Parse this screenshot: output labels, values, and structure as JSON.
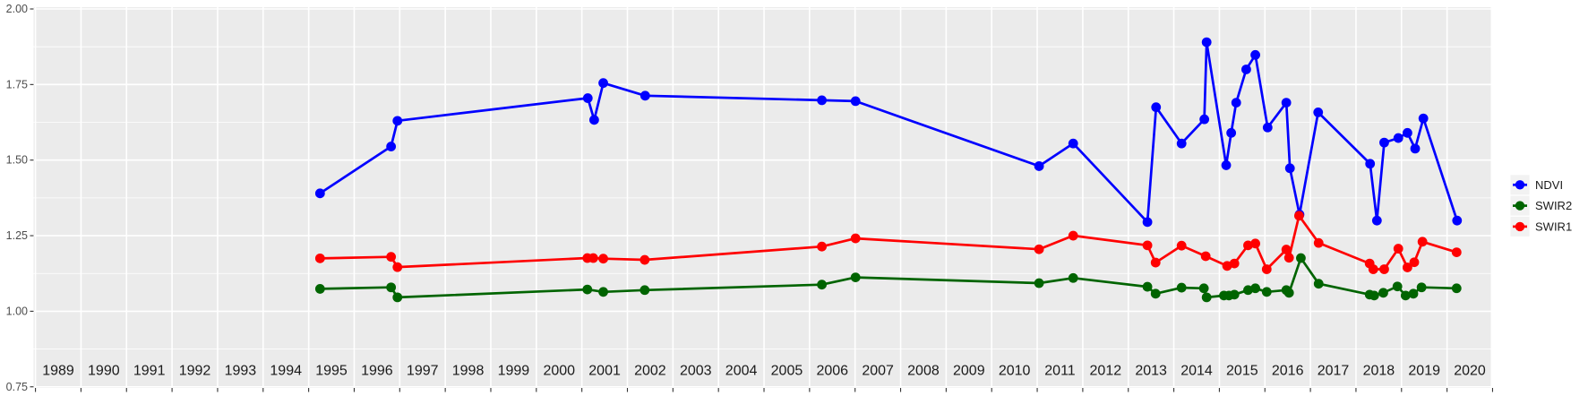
{
  "chart_data": {
    "type": "line",
    "title": "",
    "xlabel": "",
    "ylabel": "",
    "x_axis": {
      "min": 1988.95,
      "max": 2020.96,
      "gridline_years": [
        1989,
        1990,
        1991,
        1992,
        1993,
        1994,
        1995,
        1996,
        1997,
        1998,
        1999,
        2000,
        2001,
        2002,
        2003,
        2004,
        2005,
        2006,
        2007,
        2008,
        2009,
        2010,
        2011,
        2012,
        2013,
        2014,
        2015,
        2016,
        2017,
        2018,
        2019,
        2020,
        2021
      ],
      "year_labels": [
        "1989",
        "1990",
        "1991",
        "1992",
        "1993",
        "1994",
        "1995",
        "1996",
        "1997",
        "1998",
        "1999",
        "2000",
        "2001",
        "2002",
        "2003",
        "2004",
        "2005",
        "2006",
        "2007",
        "2008",
        "2009",
        "2010",
        "2011",
        "2012",
        "2013",
        "2014",
        "2015",
        "2016",
        "2017",
        "2018",
        "2019",
        "2020"
      ]
    },
    "y_axis": {
      "min": 0.746,
      "max": 2.006,
      "major_ticks": [
        0.75,
        1.0,
        1.25,
        1.5,
        1.75,
        2.0
      ],
      "tick_labels": [
        "0.75",
        "1.00",
        "1.25",
        "1.50",
        "1.75",
        "2.00"
      ],
      "minor_ticks": [
        0.875,
        1.125,
        1.375,
        1.625,
        1.875
      ]
    },
    "legend": {
      "position": "right",
      "entries": [
        "NDVI",
        "SWIR2",
        "SWIR1"
      ]
    },
    "grid": {
      "panel_bg": "#EBEBEB",
      "grid_color": "#FFFFFF",
      "axis_text_color": "#4D4D4D",
      "year_label_color": "#1A1A1A",
      "tick_mark_color": "#333333",
      "legend_key_bg": "#F2F2F2"
    },
    "series": [
      {
        "name": "NDVI",
        "color": "#0000FF",
        "points": [
          [
            1995.25,
            1.39
          ],
          [
            1996.81,
            1.545
          ],
          [
            1996.95,
            1.63
          ],
          [
            2001.13,
            1.705
          ],
          [
            2001.27,
            1.633
          ],
          [
            2001.47,
            1.755
          ],
          [
            2002.39,
            1.713
          ],
          [
            2006.27,
            1.698
          ],
          [
            2007.01,
            1.695
          ],
          [
            2011.04,
            1.48
          ],
          [
            2011.79,
            1.555
          ],
          [
            2013.42,
            1.295
          ],
          [
            2013.61,
            1.675
          ],
          [
            2014.17,
            1.555
          ],
          [
            2014.67,
            1.635
          ],
          [
            2014.72,
            1.89
          ],
          [
            2015.15,
            1.483
          ],
          [
            2015.26,
            1.59
          ],
          [
            2015.37,
            1.69
          ],
          [
            2015.59,
            1.8
          ],
          [
            2015.79,
            1.848
          ],
          [
            2016.06,
            1.608
          ],
          [
            2016.47,
            1.69
          ],
          [
            2016.55,
            1.473
          ],
          [
            2016.76,
            1.32
          ],
          [
            2017.17,
            1.658
          ],
          [
            2018.31,
            1.488
          ],
          [
            2018.46,
            1.3
          ],
          [
            2018.62,
            1.558
          ],
          [
            2018.93,
            1.573
          ],
          [
            2019.13,
            1.59
          ],
          [
            2019.3,
            1.538
          ],
          [
            2019.48,
            1.638
          ],
          [
            2020.22,
            1.3
          ]
        ]
      },
      {
        "name": "SWIR2",
        "color": "#006400",
        "points": [
          [
            1995.25,
            1.074
          ],
          [
            1996.81,
            1.079
          ],
          [
            1996.95,
            1.046
          ],
          [
            2001.12,
            1.072
          ],
          [
            2001.47,
            1.064
          ],
          [
            2002.38,
            1.07
          ],
          [
            2006.27,
            1.088
          ],
          [
            2007.01,
            1.112
          ],
          [
            2011.04,
            1.093
          ],
          [
            2011.79,
            1.11
          ],
          [
            2013.42,
            1.081
          ],
          [
            2013.6,
            1.058
          ],
          [
            2014.17,
            1.078
          ],
          [
            2014.66,
            1.076
          ],
          [
            2014.72,
            1.046
          ],
          [
            2015.1,
            1.052
          ],
          [
            2015.21,
            1.052
          ],
          [
            2015.33,
            1.055
          ],
          [
            2015.63,
            1.07
          ],
          [
            2015.79,
            1.076
          ],
          [
            2016.04,
            1.064
          ],
          [
            2016.47,
            1.07
          ],
          [
            2016.53,
            1.061
          ],
          [
            2016.79,
            1.176
          ],
          [
            2017.18,
            1.091
          ],
          [
            2018.3,
            1.055
          ],
          [
            2018.4,
            1.052
          ],
          [
            2018.6,
            1.061
          ],
          [
            2018.91,
            1.082
          ],
          [
            2019.09,
            1.052
          ],
          [
            2019.26,
            1.058
          ],
          [
            2019.44,
            1.079
          ],
          [
            2020.21,
            1.076
          ]
        ]
      },
      {
        "name": "SWIR1",
        "color": "#FF0000",
        "points": [
          [
            1995.25,
            1.175
          ],
          [
            1996.81,
            1.18
          ],
          [
            1996.95,
            1.146
          ],
          [
            2001.12,
            1.176
          ],
          [
            2001.25,
            1.176
          ],
          [
            2001.47,
            1.174
          ],
          [
            2002.38,
            1.17
          ],
          [
            2006.27,
            1.214
          ],
          [
            2007.01,
            1.241
          ],
          [
            2011.04,
            1.205
          ],
          [
            2011.79,
            1.25
          ],
          [
            2013.42,
            1.218
          ],
          [
            2013.6,
            1.161
          ],
          [
            2014.17,
            1.217
          ],
          [
            2014.7,
            1.182
          ],
          [
            2015.17,
            1.15
          ],
          [
            2015.33,
            1.158
          ],
          [
            2015.63,
            1.218
          ],
          [
            2015.79,
            1.224
          ],
          [
            2016.04,
            1.139
          ],
          [
            2016.47,
            1.204
          ],
          [
            2016.53,
            1.177
          ],
          [
            2016.75,
            1.316
          ],
          [
            2017.18,
            1.226
          ],
          [
            2018.3,
            1.158
          ],
          [
            2018.38,
            1.139
          ],
          [
            2018.62,
            1.139
          ],
          [
            2018.93,
            1.207
          ],
          [
            2019.13,
            1.145
          ],
          [
            2019.28,
            1.162
          ],
          [
            2019.46,
            1.23
          ],
          [
            2020.21,
            1.195
          ]
        ]
      }
    ]
  }
}
